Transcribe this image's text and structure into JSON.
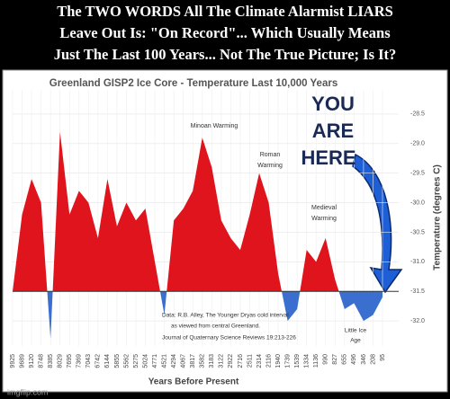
{
  "header": {
    "lines": [
      "The TWO WORDS All The Climate Alarmist LIARS",
      "Leave Out Is:  \"On Record\"...  Which Usually Means",
      "Just The Last 100 Years... Not The True Picture; Is It?"
    ]
  },
  "chart_data": {
    "type": "area",
    "title": "Greenland GISP2 Ice Core - Temperature Last 10,000 Years",
    "x_label": "Years Before Present",
    "y_label": "Temperature (degrees C)",
    "categories": [
      "9925",
      "9689",
      "9120",
      "8748",
      "8385",
      "8029",
      "7695",
      "7369",
      "7043",
      "6742",
      "6144",
      "5855",
      "5562",
      "5275",
      "5024",
      "4771",
      "4521",
      "4294",
      "4067",
      "3817",
      "3582",
      "3183",
      "3122",
      "2922",
      "2716",
      "2511",
      "2314",
      "2116",
      "1940",
      "1739",
      "1539",
      "1334",
      "1136",
      "990",
      "827",
      "655",
      "496",
      "346",
      "208",
      "95"
    ],
    "values": [
      -31.5,
      -30.2,
      -29.6,
      -30.0,
      -32.3,
      -28.8,
      -30.2,
      -29.8,
      -30.0,
      -30.6,
      -29.6,
      -30.4,
      -30.0,
      -30.3,
      -30.1,
      -31.0,
      -31.9,
      -30.3,
      -30.1,
      -29.8,
      -28.9,
      -29.4,
      -30.3,
      -30.6,
      -30.8,
      -30.2,
      -29.5,
      -30.0,
      -31.2,
      -32.0,
      -31.8,
      -30.8,
      -31.0,
      -30.6,
      -31.3,
      -31.8,
      -31.7,
      -32.0,
      -31.9,
      -31.6
    ],
    "baseline": -31.5,
    "color_above": "#e0141c",
    "color_below": "#3a6fd0",
    "ylim": [
      -32.5,
      -28.0
    ],
    "yticks": [
      -28.5,
      {
        "value": -29,
        "label": "-29.0"
      },
      -29.5,
      {
        "value": -30,
        "label": "-30.0"
      },
      -30.5,
      {
        "value": -31,
        "label": "-31.0"
      },
      -31.5,
      {
        "value": -32,
        "label": "-32.0"
      }
    ],
    "y_axis_side": "right",
    "grid": true,
    "annotations": [
      "Minoan Warming",
      "Roman",
      "Warming",
      "Medieval",
      "Warming",
      "Little Ice",
      "Age",
      "Data: R.B. Alley, The Younger Dryas cold interval",
      "as viewed from central Greenland.",
      "Journal of Quaternary  Science Reviews 19:213-226",
      "YOU",
      "ARE",
      "HERE"
    ]
  },
  "watermark": "imgflip.com"
}
